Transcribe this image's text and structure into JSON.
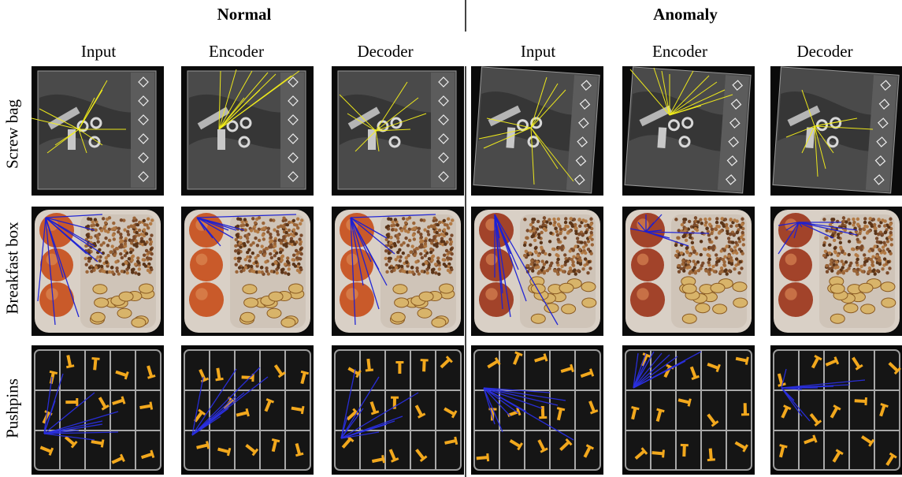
{
  "groups": {
    "normal": "Normal",
    "anomaly": "Anomaly"
  },
  "columns": [
    "Input",
    "Encoder",
    "Decoder",
    "Input",
    "Encoder",
    "Decoder"
  ],
  "rows": [
    "Screw bag",
    "Breakfast box",
    "Pushpins"
  ],
  "colors": {
    "screw_lines": "#f5f01a",
    "breakfast_lines": "#1a1fd6",
    "pushpin_lines": "#2a2fe0",
    "pin": "#f2a81d",
    "bag_bg": "#0a0a0a",
    "tray": "#d9d0c6"
  }
}
